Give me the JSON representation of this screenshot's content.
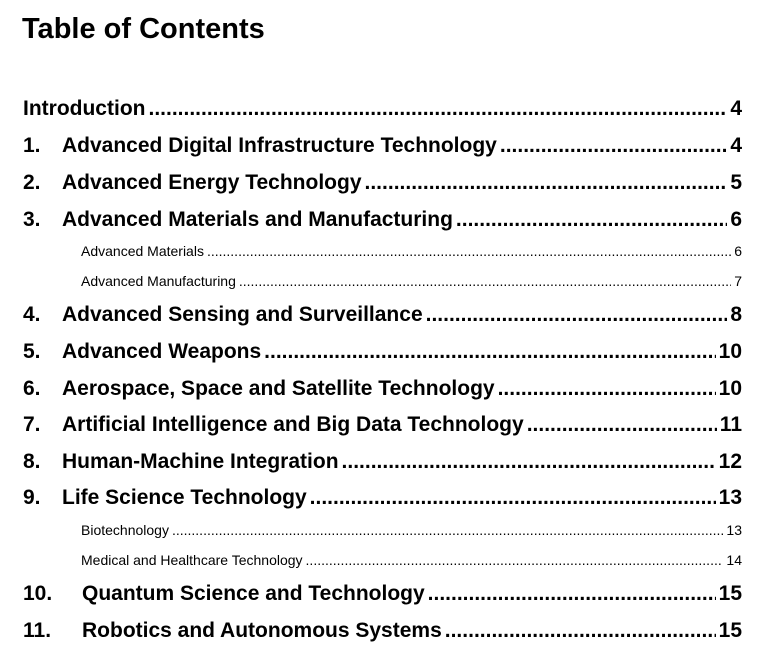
{
  "title": "Table of Contents",
  "entries": [
    {
      "number": "",
      "label": "Introduction",
      "page": "4",
      "level": 1
    },
    {
      "number": "1.",
      "label": "Advanced Digital Infrastructure Technology",
      "page": "4",
      "level": 1
    },
    {
      "number": "2.",
      "label": "Advanced Energy Technology",
      "page": "5",
      "level": 1
    },
    {
      "number": "3.",
      "label": "Advanced Materials and Manufacturing",
      "page": "6",
      "level": 1
    },
    {
      "number": "",
      "label": "Advanced Materials",
      "page": "6",
      "level": 2
    },
    {
      "number": "",
      "label": "Advanced Manufacturing",
      "page": "7",
      "level": 2
    },
    {
      "number": "4.",
      "label": "Advanced Sensing and Surveillance",
      "page": "8",
      "level": 1
    },
    {
      "number": "5.",
      "label": "Advanced Weapons",
      "page": "10",
      "level": 1
    },
    {
      "number": "6.",
      "label": "Aerospace, Space and Satellite Technology",
      "page": "10",
      "level": 1
    },
    {
      "number": "7.",
      "label": "Artificial Intelligence and Big Data Technology",
      "page": "11",
      "level": 1
    },
    {
      "number": "8.",
      "label": "Human-Machine Integration",
      "page": "12",
      "level": 1
    },
    {
      "number": "9.",
      "label": "Life Science Technology",
      "page": "13",
      "level": 1
    },
    {
      "number": "",
      "label": "Biotechnology",
      "page": "13",
      "level": 2
    },
    {
      "number": "",
      "label": "Medical and Healthcare Technology",
      "page": "14",
      "level": 2
    },
    {
      "number": "10.",
      "label": "Quantum Science and Technology",
      "page": "15",
      "level": 1
    },
    {
      "number": "11.",
      "label": "Robotics and Autonomous Systems",
      "page": "15",
      "level": 1
    }
  ]
}
